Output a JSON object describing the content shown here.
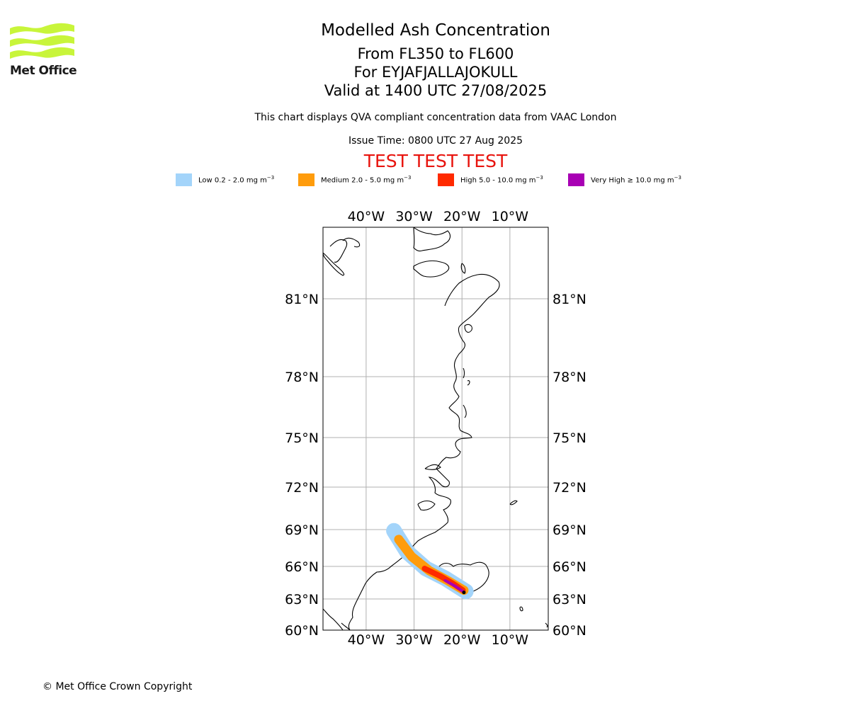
{
  "branding": {
    "logo_text": "Met Office",
    "logo_icon": "met-office-wave-logo",
    "logo_color": "#c8f53a"
  },
  "header": {
    "title": "Modelled Ash Concentration",
    "levels": "From FL350 to FL600",
    "volcano": "For EYJAFJALLAJOKULL",
    "valid": "Valid at 1400 UTC 27/08/2025",
    "subtitle": "This chart displays QVA compliant concentration data from VAAC London",
    "issue_time": "Issue Time: 0800 UTC 27 Aug 2025",
    "test_banner": "TEST TEST TEST",
    "test_color": "#e8140e"
  },
  "legend": [
    {
      "label": "Low 0.2 - 2.0 mg m",
      "unit_exp": "−3",
      "color": "#a3d4fa"
    },
    {
      "label": "Medium 2.0 - 5.0 mg m",
      "unit_exp": "−3",
      "color": "#ff9c0c"
    },
    {
      "label": "High 5.0 - 10.0 mg m",
      "unit_exp": "−3",
      "color": "#ff2a00"
    },
    {
      "label": "Very High  ≥  10.0 mg m",
      "unit_exp": "−3",
      "color": "#a800b4"
    }
  ],
  "map": {
    "projection": "PlateCarree-like, latitude stretched",
    "lon_range": [
      -49,
      -2
    ],
    "lat_range": [
      60,
      84
    ],
    "grid": true,
    "lon_ticks": [
      {
        "value": -40,
        "label": "40°W"
      },
      {
        "value": -30,
        "label": "30°W"
      },
      {
        "value": -20,
        "label": "20°W"
      },
      {
        "value": -10,
        "label": "10°W"
      }
    ],
    "lat_ticks": [
      {
        "value": 60,
        "label": "60°N"
      },
      {
        "value": 63,
        "label": "63°N"
      },
      {
        "value": 66,
        "label": "66°N"
      },
      {
        "value": 69,
        "label": "69°N"
      },
      {
        "value": 72,
        "label": "72°N"
      },
      {
        "value": 75,
        "label": "75°N"
      },
      {
        "value": 78,
        "label": "78°N"
      },
      {
        "value": 81,
        "label": "81°N"
      }
    ],
    "ash_plume": {
      "source": "EYJAFJALLAJOKULL",
      "source_position": {
        "lon": -19.6,
        "lat": 63.6
      },
      "low_path": [
        [
          -34.2,
          68.9
        ],
        [
          -31.5,
          67.2
        ],
        [
          -27.5,
          65.8
        ],
        [
          -23.5,
          64.9
        ],
        [
          -19.2,
          63.7
        ]
      ],
      "medium_path": [
        [
          -33.2,
          68.2
        ],
        [
          -30.5,
          66.8
        ],
        [
          -26.8,
          65.6
        ],
        [
          -23.0,
          64.7
        ],
        [
          -19.6,
          63.8
        ]
      ],
      "high_path": [
        [
          -27.8,
          65.8
        ],
        [
          -24.5,
          65.1
        ],
        [
          -21.8,
          64.4
        ],
        [
          -19.8,
          63.8
        ]
      ],
      "very_high_path": [
        [
          -23.5,
          64.7
        ],
        [
          -21.5,
          64.2
        ],
        [
          -19.8,
          63.7
        ]
      ]
    }
  },
  "footer": {
    "copyright": "© Met Office Crown Copyright"
  }
}
